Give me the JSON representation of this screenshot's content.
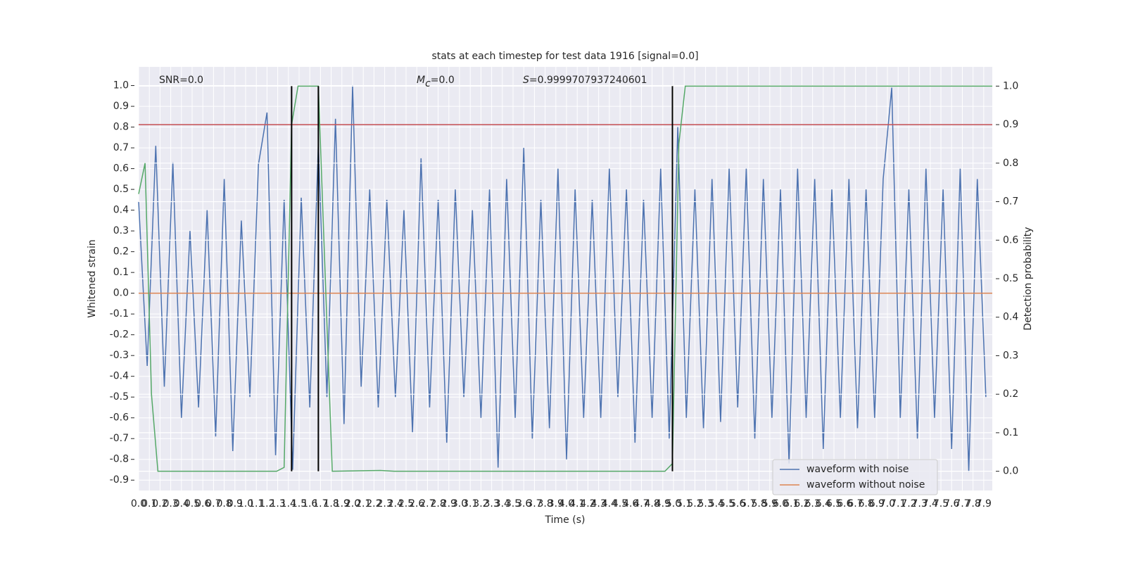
{
  "chart_data": {
    "type": "line",
    "title": "stats at each timestep for test data 1916 [signal=0.0]",
    "xlabel": "Time (s)",
    "ylabel": "Whitened strain",
    "y2label": "Detection probability",
    "annotations": [
      {
        "text": "SNR=0.0"
      },
      {
        "symbol": "M",
        "subscript": "c",
        "text": "=0.0"
      },
      {
        "symbol": "S",
        "text": "=0.9999707937240601"
      }
    ],
    "xlim": [
      0,
      7.98
    ],
    "ylim": [
      -0.95,
      1.09
    ],
    "y2lim": [
      -0.05,
      1.05
    ],
    "grid": true,
    "legend": "lower right",
    "xticks": [
      {
        "value": 0,
        "label": "0.0"
      },
      0.1,
      0.2,
      0.3,
      0.4,
      0.5,
      0.6,
      0.7,
      0.8,
      0.9,
      {
        "value": 1,
        "label": "1.0"
      },
      1.1,
      1.2,
      1.3,
      1.4,
      1.5,
      1.6,
      1.7,
      1.8,
      1.9,
      {
        "value": 2,
        "label": "2.0"
      },
      2.1,
      2.2,
      2.3,
      2.4,
      2.5,
      2.6,
      2.7,
      2.8,
      2.9,
      {
        "value": 3,
        "label": "3.0"
      },
      3.1,
      3.2,
      3.3,
      3.4,
      3.5,
      3.6,
      3.7,
      3.8,
      3.9,
      {
        "value": 4,
        "label": "4.0"
      },
      4.1,
      4.2,
      4.3,
      4.4,
      4.5,
      4.6,
      4.7,
      4.8,
      4.9,
      {
        "value": 5,
        "label": "5.0"
      },
      5.1,
      5.2,
      5.3,
      5.4,
      5.5,
      5.6,
      5.7,
      5.8,
      5.9,
      {
        "value": 6,
        "label": "6.0"
      },
      6.1,
      6.2,
      6.3,
      6.4,
      6.5,
      6.6,
      6.7,
      6.8,
      6.9,
      {
        "value": 7,
        "label": "7.0"
      },
      7.1,
      7.2,
      7.3,
      7.4,
      7.5,
      7.6,
      7.7,
      7.8,
      7.9
    ],
    "yticks": [
      -0.9,
      -0.8,
      -0.7,
      -0.6,
      -0.5,
      -0.4,
      -0.3,
      -0.2,
      -0.1,
      {
        "value": 0,
        "label": "0.0"
      },
      0.1,
      0.2,
      0.3,
      0.4,
      0.5,
      0.6,
      0.7,
      0.8,
      0.9,
      {
        "value": 1,
        "label": "1.0"
      }
    ],
    "y2ticks": [
      {
        "value": 0,
        "label": "0.0"
      },
      0.1,
      0.2,
      0.3,
      0.4,
      0.5,
      0.6,
      0.7,
      0.8,
      0.9,
      {
        "value": 1,
        "label": "1.0"
      }
    ],
    "series": [
      {
        "name": "waveform with noise",
        "color": "#4c72b0",
        "x": [
          0,
          0.08,
          0.16,
          0.24,
          0.32,
          0.4,
          0.48,
          0.56,
          0.64,
          0.72,
          0.8,
          0.88,
          0.96,
          1.04,
          1.12,
          1.2,
          1.28,
          1.36,
          1.44,
          1.52,
          1.6,
          1.68,
          1.76,
          1.84,
          1.92,
          2,
          2.08,
          2.16,
          2.24,
          2.32,
          2.4,
          2.48,
          2.56,
          2.64,
          2.72,
          2.8,
          2.88,
          2.96,
          3.04,
          3.12,
          3.2,
          3.28,
          3.36,
          3.44,
          3.52,
          3.6,
          3.68,
          3.76,
          3.84,
          3.92,
          4,
          4.08,
          4.16,
          4.24,
          4.32,
          4.4,
          4.48,
          4.56,
          4.64,
          4.72,
          4.8,
          4.88,
          4.96,
          5.04,
          5.12,
          5.2,
          5.28,
          5.36,
          5.44,
          5.52,
          5.6,
          5.68,
          5.76,
          5.84,
          5.92,
          6,
          6.08,
          6.16,
          6.24,
          6.32,
          6.4,
          6.48,
          6.56,
          6.64,
          6.72,
          6.8,
          6.88,
          6.96,
          7.04,
          7.12,
          7.2,
          7.28,
          7.36,
          7.44,
          7.52,
          7.6,
          7.68,
          7.76,
          7.84,
          7.92
        ],
        "values": [
          0.44,
          -0.35,
          0.71,
          -0.45,
          0.63,
          -0.6,
          0.3,
          -0.55,
          0.4,
          -0.69,
          0.55,
          -0.76,
          0.35,
          -0.5,
          0.62,
          0.87,
          -0.78,
          0.45,
          -0.85,
          0.46,
          -0.55,
          0.72,
          -0.5,
          0.84,
          -0.63,
          1.0,
          -0.45,
          0.5,
          -0.55,
          0.45,
          -0.5,
          0.4,
          -0.67,
          0.65,
          -0.55,
          0.45,
          -0.72,
          0.5,
          -0.5,
          0.4,
          -0.6,
          0.5,
          -0.84,
          0.55,
          -0.6,
          0.7,
          -0.7,
          0.45,
          -0.65,
          0.6,
          -0.8,
          0.5,
          -0.6,
          0.45,
          -0.6,
          0.6,
          -0.5,
          0.5,
          -0.72,
          0.45,
          -0.6,
          0.6,
          -0.7,
          0.8,
          -0.6,
          0.5,
          -0.65,
          0.55,
          -0.62,
          0.6,
          -0.55,
          0.6,
          -0.7,
          0.55,
          -0.6,
          0.5,
          -0.82,
          0.6,
          -0.6,
          0.55,
          -0.75,
          0.5,
          -0.6,
          0.55,
          -0.65,
          0.5,
          -0.6,
          0.55,
          0.99,
          -0.6,
          0.5,
          -0.7,
          0.6,
          -0.6,
          0.5,
          -0.75,
          0.6,
          -0.86,
          0.55,
          -0.5
        ]
      },
      {
        "name": "waveform without noise",
        "color": "#dd8452",
        "x": [
          0,
          7.98
        ],
        "values": [
          0,
          0
        ]
      },
      {
        "color": "#55a868",
        "axis": "y2",
        "x": [
          0,
          0.06,
          0.12,
          0.18,
          1.29,
          1.36,
          1.43,
          1.49,
          1.62,
          1.68,
          1.81,
          2.26,
          2.39,
          4.92,
          4.99,
          5.05,
          5.11,
          7.98
        ],
        "values": [
          0.72,
          0.8,
          0.2,
          0.0,
          0.0,
          0.01,
          0.9,
          1.0,
          1.0,
          1.0,
          0.0,
          0.002,
          0.0,
          0.0,
          0.02,
          0.85,
          1.0,
          1.0
        ]
      }
    ],
    "hlines": [
      {
        "value": 0.9,
        "axis": "y2",
        "color": "#c44e52"
      }
    ],
    "vlines": {
      "x": [
        1.43,
        1.68,
        4.99
      ],
      "y2range": [
        0,
        1
      ],
      "color": "#000000"
    }
  }
}
